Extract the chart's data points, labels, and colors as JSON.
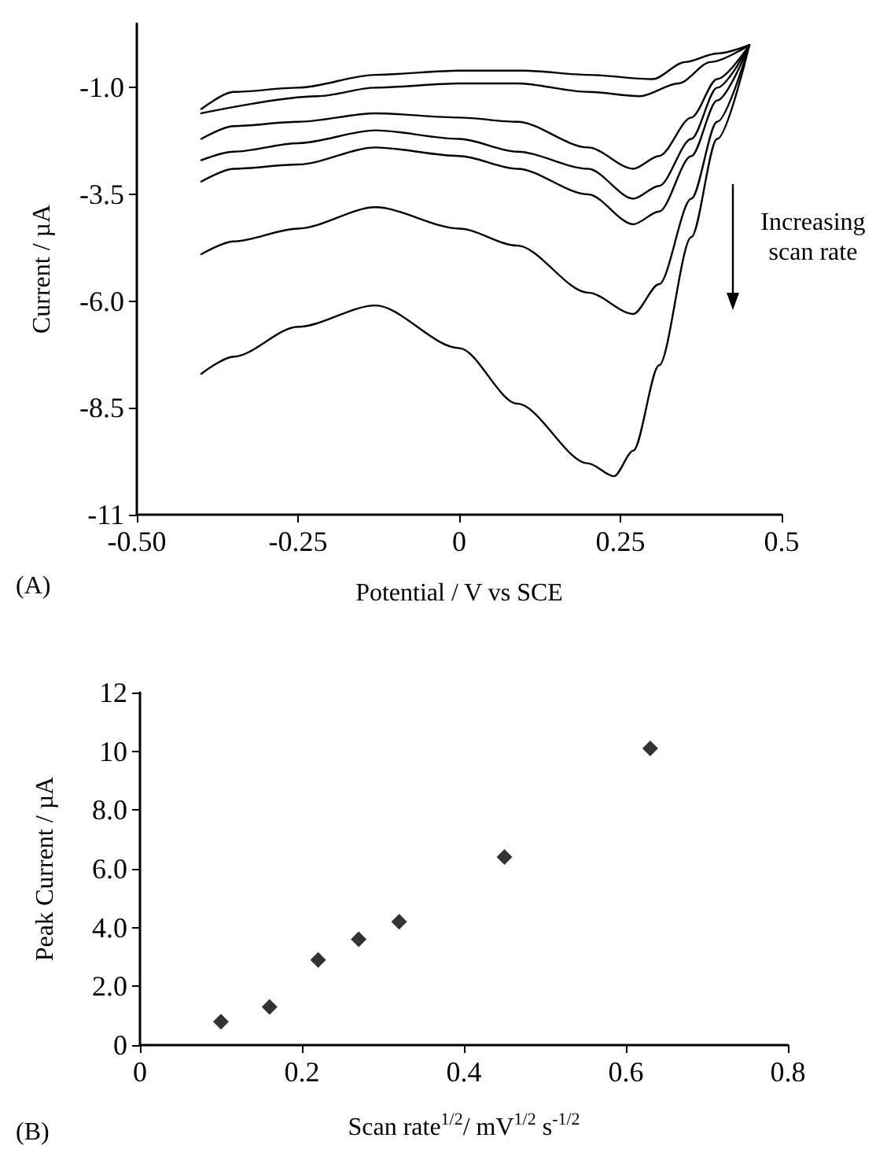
{
  "chart_data": [
    {
      "type": "line",
      "xlabel": "Potential / V vs SCE",
      "ylabel": "Current / µA",
      "xlim": [
        -0.5,
        0.5
      ],
      "xticks": [
        {
          "value": -0.5,
          "label": "-0.50"
        },
        -0.25,
        0,
        0.25,
        0.5
      ],
      "ylim": [
        -11,
        0.5
      ],
      "yticks": [
        -11,
        -8.5,
        {
          "value": -6,
          "label": "-6.0"
        },
        -3.5,
        {
          "value": -1,
          "label": "-1.0"
        }
      ],
      "marker": "none",
      "line_style": "solid",
      "annotations": [
        "Increasing scan rate",
        "(A)"
      ],
      "series": [
        {
          "color": "#000000",
          "x": [
            -0.4,
            -0.35,
            -0.25,
            -0.13,
            0,
            0.1,
            0.2,
            0.3,
            0.35,
            0.4,
            0.45
          ],
          "values": [
            -1.5,
            -1.1,
            -1.0,
            -0.7,
            -0.6,
            -0.6,
            -0.7,
            -0.8,
            -0.4,
            -0.2,
            0.0
          ]
        },
        {
          "color": "#000000",
          "x": [
            -0.4,
            -0.22,
            -0.13,
            0,
            0.09,
            0.2,
            0.28,
            0.34,
            0.39,
            0.45
          ],
          "values": [
            -1.6,
            -1.2,
            -1.0,
            -0.9,
            -0.9,
            -1.1,
            -1.2,
            -0.9,
            -0.4,
            0.0
          ]
        },
        {
          "color": "#000000",
          "x": [
            -0.4,
            -0.35,
            -0.25,
            -0.13,
            0,
            0.09,
            0.2,
            0.27,
            0.31,
            0.36,
            0.4,
            0.45
          ],
          "values": [
            -2.2,
            -1.9,
            -1.8,
            -1.6,
            -1.7,
            -1.8,
            -2.4,
            -2.9,
            -2.6,
            -1.7,
            -0.8,
            0.0
          ]
        },
        {
          "color": "#000000",
          "x": [
            -0.4,
            -0.35,
            -0.25,
            -0.13,
            0,
            0.09,
            0.2,
            0.27,
            0.31,
            0.36,
            0.4,
            0.45
          ],
          "values": [
            -2.7,
            -2.5,
            -2.3,
            -2.0,
            -2.2,
            -2.5,
            -2.9,
            -3.6,
            -3.3,
            -2.2,
            -1.0,
            0.0
          ]
        },
        {
          "color": "#000000",
          "x": [
            -0.4,
            -0.35,
            -0.25,
            -0.13,
            0,
            0.09,
            0.2,
            0.27,
            0.31,
            0.36,
            0.4,
            0.45
          ],
          "values": [
            -3.2,
            -2.9,
            -2.8,
            -2.4,
            -2.6,
            -2.9,
            -3.5,
            -4.2,
            -3.9,
            -2.6,
            -1.3,
            0.0
          ]
        },
        {
          "color": "#000000",
          "x": [
            -0.4,
            -0.35,
            -0.25,
            -0.13,
            0,
            0.09,
            0.2,
            0.27,
            0.31,
            0.36,
            0.4,
            0.45
          ],
          "values": [
            -4.9,
            -4.6,
            -4.3,
            -3.8,
            -4.3,
            -4.7,
            -5.8,
            -6.3,
            -5.6,
            -3.6,
            -1.8,
            0.0
          ]
        },
        {
          "color": "#000000",
          "x": [
            -0.4,
            -0.35,
            -0.25,
            -0.13,
            0,
            0.09,
            0.2,
            0.24,
            0.27,
            0.31,
            0.36,
            0.4,
            0.45
          ],
          "values": [
            -7.7,
            -7.3,
            -6.6,
            -6.1,
            -7.1,
            -8.4,
            -9.8,
            -10.1,
            -9.5,
            -7.5,
            -4.5,
            -2.2,
            0.0
          ]
        }
      ]
    },
    {
      "type": "scatter",
      "xlabel": "Scan rate$^{1/2}$/ mV$^{1/2}$ s$^{-1/2}$",
      "ylabel": "Peak Current / µA",
      "xlim": [
        0,
        0.8
      ],
      "xticks": [
        0,
        0.2,
        0.4,
        0.6,
        0.8
      ],
      "ylim": [
        0,
        12
      ],
      "yticks": [
        0,
        {
          "value": 2,
          "label": "2.0"
        },
        {
          "value": 4,
          "label": "4.0"
        },
        {
          "value": 6,
          "label": "6.0"
        },
        {
          "value": 8,
          "label": "8.0"
        },
        10,
        12
      ],
      "marker": "diamond",
      "annotations": [
        "(B)"
      ],
      "series": [
        {
          "color": "#000000",
          "x": [
            0.1,
            0.16,
            0.22,
            0.27,
            0.32,
            0.45,
            0.63
          ],
          "values": [
            0.8,
            1.3,
            2.9,
            3.6,
            4.2,
            6.4,
            10.1
          ]
        }
      ]
    }
  ]
}
